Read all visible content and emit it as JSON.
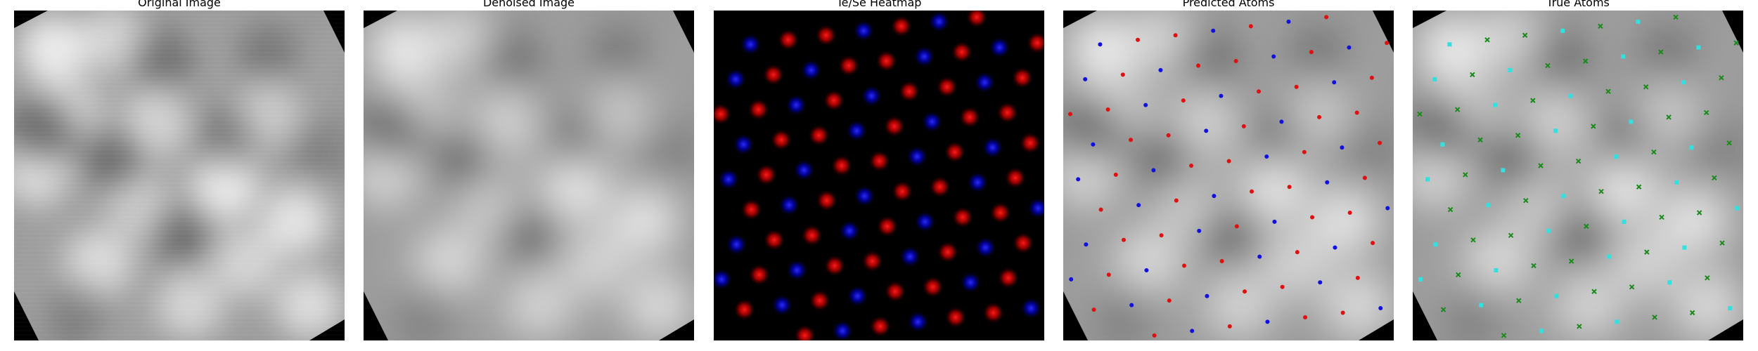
{
  "panels": [
    {
      "title": "Original Image"
    },
    {
      "title": "Denoised Image"
    },
    {
      "title": "Te/Se Heatmap"
    },
    {
      "title": "Predicted Atoms"
    },
    {
      "title": "True Atoms"
    }
  ],
  "colors": {
    "heat_red": "#ff1a1a",
    "heat_blue": "#2a2aff",
    "pred_red": "#e01010",
    "pred_blue": "#1010e0",
    "true_green": "#1a8a1a",
    "true_cyan": "#33e0e0"
  }
}
